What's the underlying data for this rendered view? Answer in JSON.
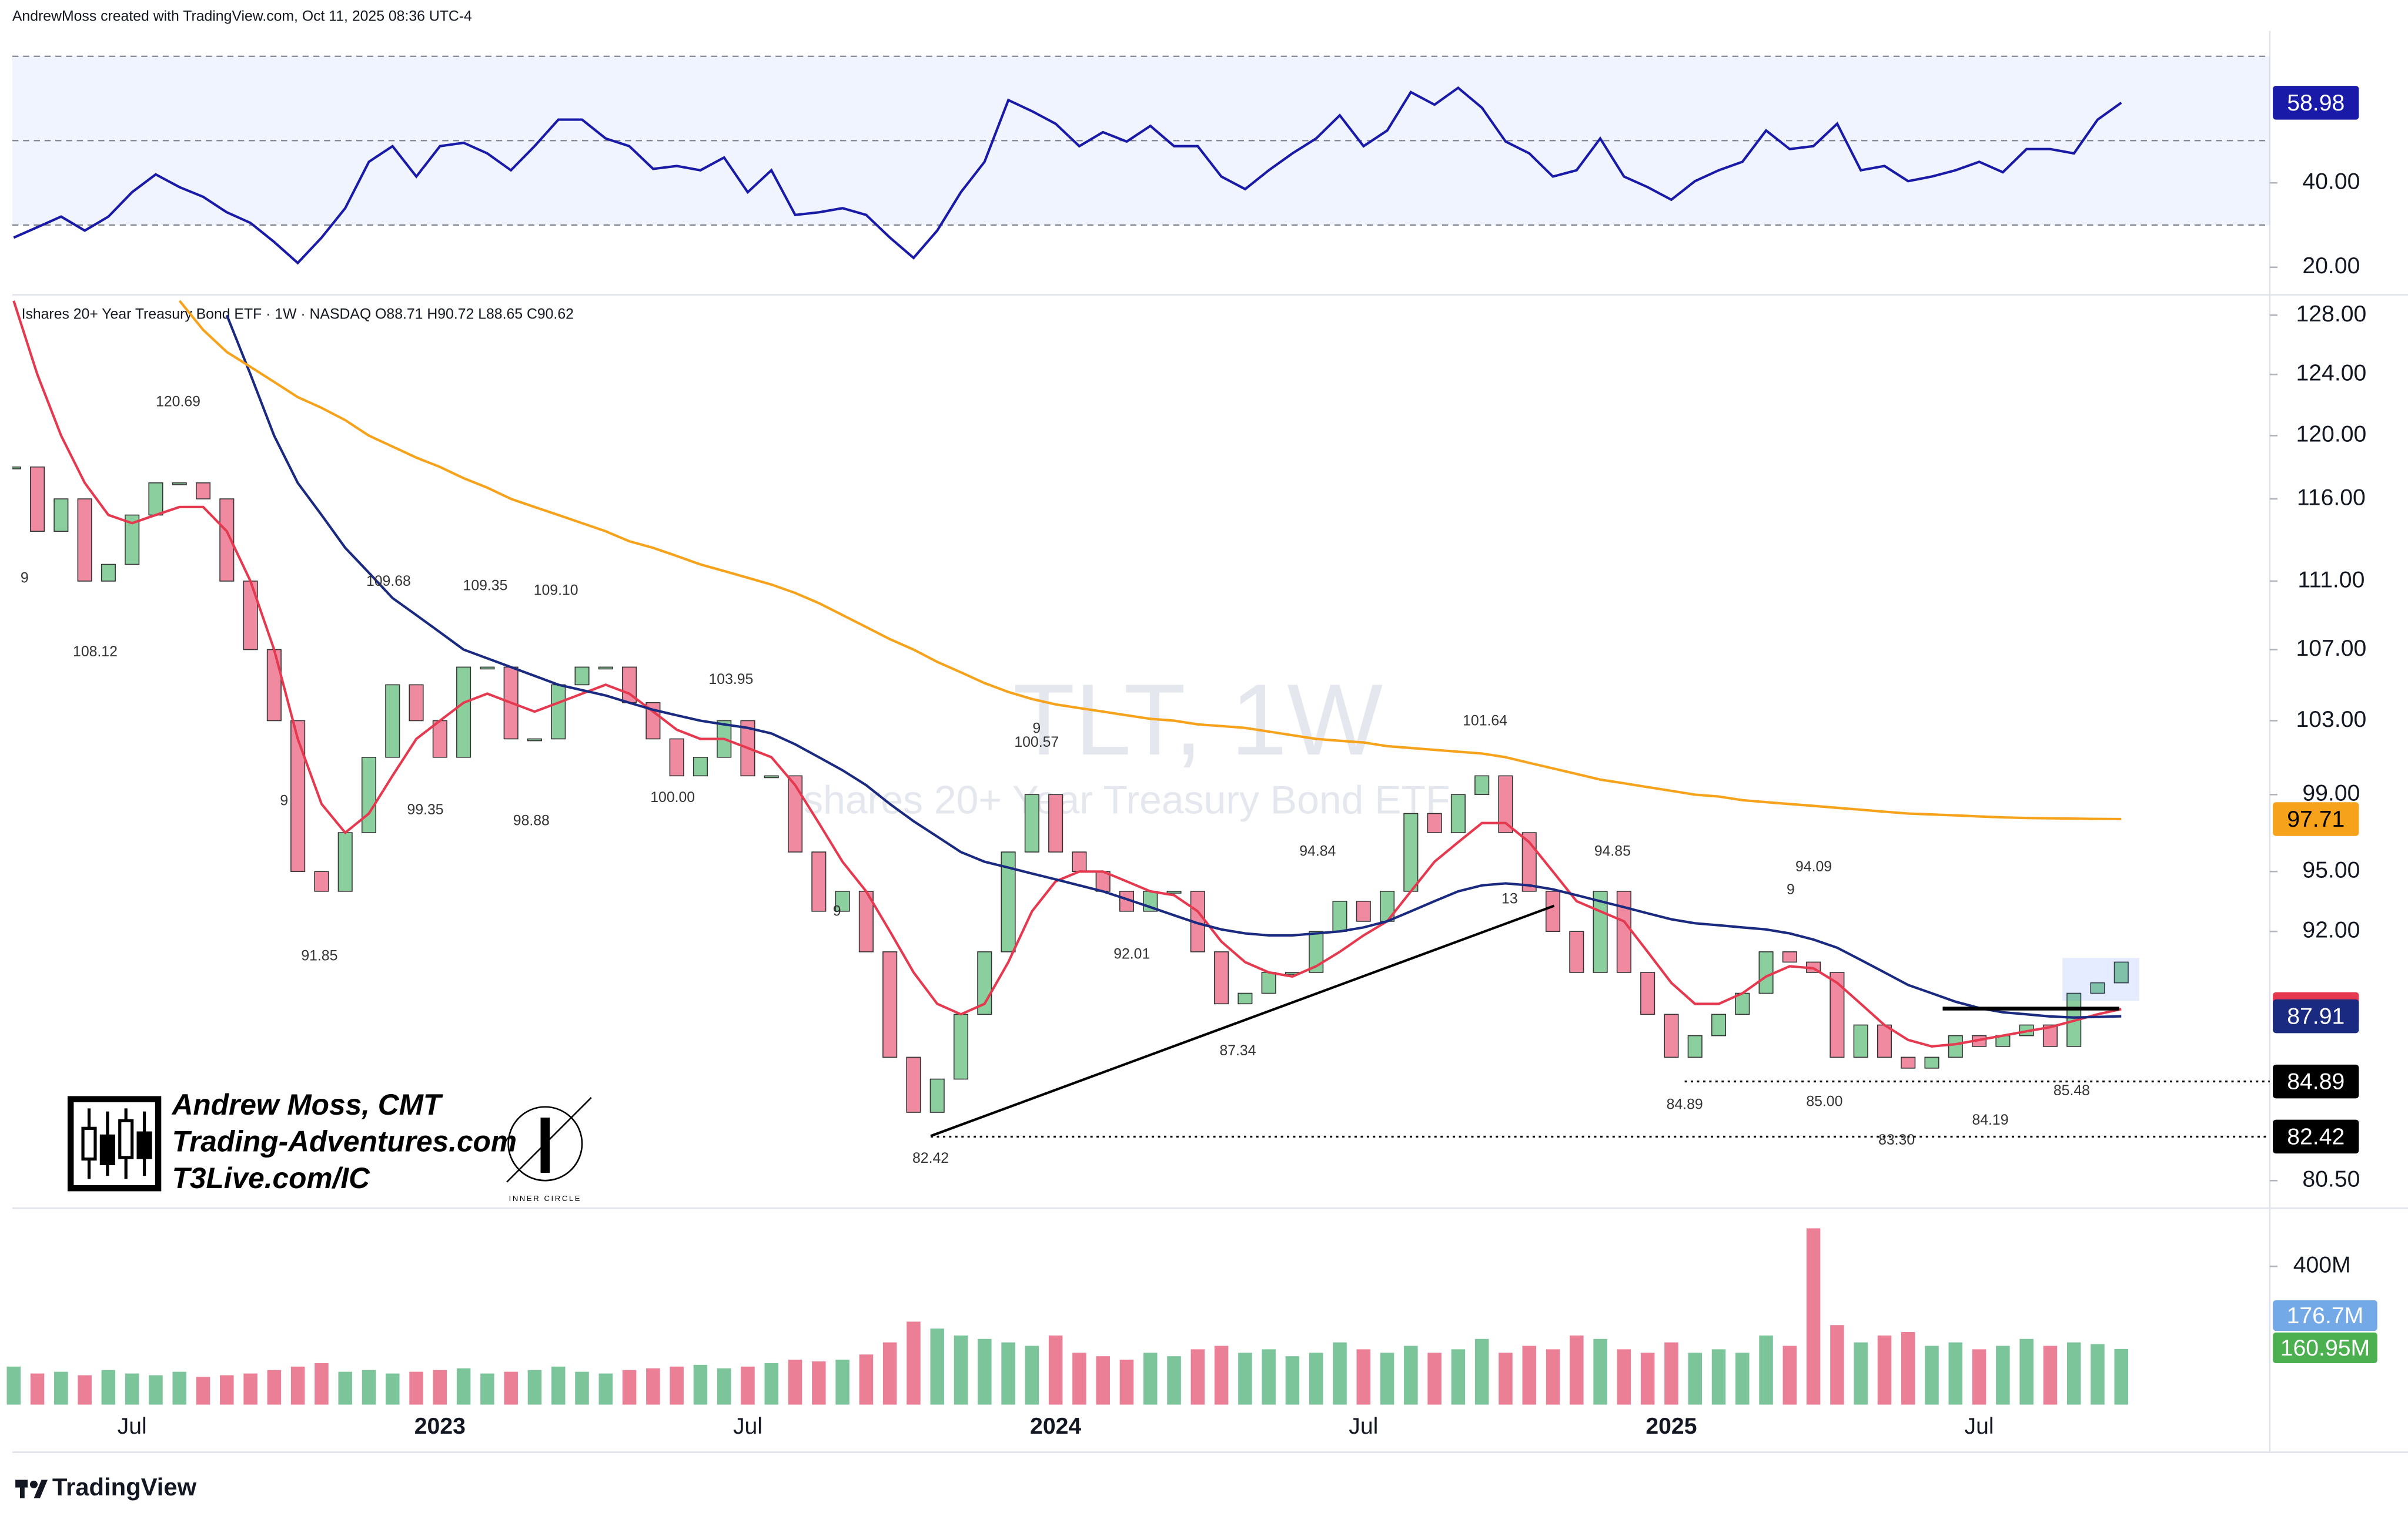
{
  "header": "AndrewMoss created with TradingView.com, Oct 11, 2025 08:36 UTC-4",
  "branding": {
    "name": "Andrew Moss, CMT",
    "site": "Trading-Adventures.com",
    "site2": "T3Live.com/IC",
    "logo": "INNER CIRCLE"
  },
  "footer": "TradingView",
  "chart_data": {
    "type": "candlestick",
    "title": "Ishares 20+ Year Treasury Bond ETF · 1W · NASDAQ  O88.71  H90.72  L88.65  C90.62",
    "watermark": "TLT, 1W",
    "watermark_subtitle": "Ishares 20+ Year Treasury Bond ETF",
    "categories": [
      null,
      null,
      null,
      null,
      null,
      "Jul",
      null,
      null,
      null,
      null,
      null,
      null,
      null,
      null,
      null,
      null,
      null,
      null,
      "2023",
      null,
      null,
      null,
      null,
      null,
      null,
      null,
      null,
      null,
      null,
      null,
      null,
      "Jul",
      null,
      null,
      null,
      null,
      null,
      null,
      null,
      null,
      null,
      null,
      null,
      null,
      "2024",
      null,
      null,
      null,
      null,
      null,
      null,
      null,
      null,
      null,
      null,
      null,
      null,
      "Jul",
      null,
      null,
      null,
      null,
      null,
      null,
      null,
      null,
      null,
      null,
      null,
      null,
      "2025",
      null,
      null,
      null,
      null,
      null,
      null,
      null,
      null,
      null,
      null,
      null,
      null,
      "Jul",
      null,
      null,
      null,
      null,
      null,
      null
    ],
    "log_scale": true,
    "ylim": [
      79.45,
      129.4
    ],
    "yticks": [
      {
        "value": 128,
        "label": "128.00"
      },
      {
        "value": 124,
        "label": "124.00"
      },
      {
        "value": 120,
        "label": "120.00"
      },
      {
        "value": 116,
        "label": "116.00"
      },
      {
        "value": 111,
        "label": "111.00"
      },
      {
        "value": 107,
        "label": "107.00"
      },
      {
        "value": 103,
        "label": "103.00"
      },
      {
        "value": 99,
        "label": "99.00"
      },
      {
        "value": 95,
        "label": "95.00"
      },
      {
        "value": 92,
        "label": "92.00"
      },
      {
        "value": 80.5,
        "label": "80.50"
      }
    ],
    "series": [
      {
        "type": "candlestick",
        "color": "#8ccf9e",
        "down_color": "#ef8aa0",
        "values": [
          118,
          114,
          116,
          111,
          112,
          115,
          117,
          117,
          116,
          111,
          107,
          103,
          95,
          94,
          97,
          101,
          105,
          103,
          101,
          106,
          106,
          102,
          102,
          105,
          106,
          106,
          104,
          102,
          100,
          101,
          103,
          100,
          100,
          96,
          93,
          94,
          91,
          86,
          83.5,
          85,
          88,
          91,
          96,
          99,
          96,
          95,
          94,
          93,
          94,
          94,
          91,
          88.5,
          89,
          90,
          90,
          92,
          93.5,
          92.5,
          94,
          98,
          97,
          99,
          100,
          97,
          94,
          92,
          90,
          94,
          90,
          88,
          86,
          87,
          88,
          89,
          91,
          90.5,
          90,
          86,
          87.5,
          86,
          85.5,
          86,
          87,
          86.5,
          87,
          87.5,
          86.5,
          89,
          89.5,
          90.5
        ]
      },
      {
        "type": "line",
        "color": "#e53950",
        "values": [
          129,
          124,
          120,
          117,
          115,
          114.5,
          115,
          115.5,
          115.5,
          114,
          111,
          107,
          102,
          98.5,
          97,
          98,
          100,
          102,
          103,
          104,
          104.5,
          104,
          103.5,
          104,
          104.5,
          105,
          104.5,
          103.5,
          102.5,
          102,
          102,
          101.5,
          101,
          99.5,
          97.5,
          95.5,
          94,
          92,
          90,
          88.5,
          88,
          88.5,
          90.5,
          93,
          94.5,
          95,
          95,
          94.5,
          94,
          93.8,
          93,
          91.5,
          90.5,
          90,
          89.8,
          90.3,
          91,
          91.8,
          92.5,
          94,
          95.5,
          96.5,
          97.5,
          97.5,
          96.5,
          95,
          93.5,
          93,
          92.5,
          91,
          89.5,
          88.5,
          88.5,
          89,
          89.8,
          90.3,
          90.2,
          89.5,
          88.5,
          87.5,
          86.8,
          86.5,
          86.6,
          86.8,
          87,
          87.2,
          87.4,
          87.7,
          88,
          88.25
        ]
      },
      {
        "type": "line",
        "color": "#1a2a80",
        "values": [
          null,
          null,
          null,
          null,
          null,
          null,
          null,
          null,
          null,
          128,
          124,
          120,
          117,
          115,
          113,
          111.5,
          110,
          109,
          108,
          107,
          106.5,
          106,
          105.5,
          105,
          104.7,
          104.4,
          104,
          103.6,
          103.3,
          103,
          102.8,
          102.6,
          102.3,
          101.7,
          101,
          100.3,
          99.5,
          98.5,
          97.6,
          96.8,
          96,
          95.5,
          95.2,
          94.9,
          94.6,
          94.3,
          94,
          93.6,
          93.2,
          92.8,
          92.4,
          92.1,
          91.9,
          91.8,
          91.8,
          91.9,
          92,
          92.2,
          92.5,
          93,
          93.5,
          94,
          94.3,
          94.4,
          94.3,
          94.1,
          93.8,
          93.5,
          93.2,
          92.9,
          92.6,
          92.4,
          92.3,
          92.2,
          92.1,
          91.9,
          91.6,
          91.2,
          90.6,
          90,
          89.4,
          89,
          88.6,
          88.3,
          88.1,
          88,
          87.9,
          87.85,
          87.88,
          87.91
        ]
      },
      {
        "type": "line",
        "color": "#f7a21b",
        "values": [
          null,
          null,
          null,
          null,
          null,
          null,
          null,
          129,
          127,
          125.5,
          124.5,
          123.5,
          122.5,
          121.8,
          121,
          120,
          119.3,
          118.6,
          118,
          117.3,
          116.7,
          116,
          115.5,
          115,
          114.5,
          114,
          113.4,
          113,
          112.5,
          112,
          111.6,
          111.2,
          110.8,
          110.3,
          109.7,
          109,
          108.3,
          107.6,
          107,
          106.3,
          105.7,
          105.1,
          104.6,
          104.2,
          103.9,
          103.7,
          103.5,
          103.3,
          103.1,
          103,
          102.8,
          102.7,
          102.6,
          102.4,
          102.2,
          102,
          101.9,
          101.8,
          101.6,
          101.5,
          101.4,
          101.3,
          101.2,
          101,
          100.7,
          100.4,
          100.1,
          99.8,
          99.6,
          99.4,
          99.2,
          99,
          98.9,
          98.7,
          98.6,
          98.5,
          98.4,
          98.3,
          98.2,
          98.1,
          98,
          97.95,
          97.9,
          97.85,
          97.8,
          97.77,
          97.75,
          97.73,
          97.72,
          97.71
        ]
      }
    ],
    "price_badges": [
      {
        "value": 97.71,
        "color": "#f7a21b",
        "text_color": "#000"
      },
      {
        "value": 88.25,
        "color": "#e53950",
        "text_color": "#fff"
      },
      {
        "value": 87.91,
        "color": "#1a2a80",
        "text_color": "#fff"
      },
      {
        "value": 84.89,
        "color": "#000",
        "text_color": "#fff"
      },
      {
        "value": 82.42,
        "color": "#000",
        "text_color": "#fff"
      }
    ],
    "annotations": [
      "120.69",
      "108.12",
      "109.68",
      "99.35",
      "109.35",
      "98.88",
      "109.10",
      "100.00",
      "103.95",
      "91.85",
      "82.42",
      "100.57",
      "92.01",
      "87.34",
      "94.84",
      "101.64",
      "94.85",
      "84.89",
      "85.00",
      "94.09",
      "83.30",
      "84.19",
      "85.48"
    ],
    "markers": [
      "9",
      "9",
      "9",
      "9",
      "9",
      "13"
    ],
    "rsi": {
      "type": "line",
      "color": "#1a1aa8",
      "ylim": [
        13.45,
        73.1
      ],
      "yticks": [
        {
          "value": 40,
          "label": "40.00"
        },
        {
          "value": 20,
          "label": "20.00"
        }
      ],
      "levels": [
        30,
        50,
        70
      ],
      "values": [
        27,
        29.5,
        32,
        28.7,
        32,
        37.8,
        42,
        39,
        36.7,
        33,
        30.5,
        26,
        21,
        27,
        34,
        45,
        48.7,
        41.5,
        48.7,
        49.5,
        47,
        43,
        48.7,
        55,
        55,
        50.5,
        48.7,
        43.3,
        44,
        43,
        46,
        37.8,
        43,
        32.4,
        33,
        34,
        32.4,
        27,
        22.2,
        28.7,
        37.8,
        45,
        59.6,
        57,
        54,
        48.7,
        52,
        49.8,
        53.5,
        48.7,
        48.7,
        41.5,
        38.5,
        43,
        47,
        50.5,
        56,
        48.7,
        52.4,
        61.5,
        58.5,
        62.5,
        57.8,
        49.8,
        47,
        41.5,
        43,
        50.5,
        41.5,
        39,
        36,
        40.4,
        43,
        45,
        52.4,
        48,
        48.7,
        54,
        43,
        44,
        40.4,
        41.5,
        43,
        45,
        42.5,
        48,
        48,
        47,
        55,
        58.98
      ],
      "badge": {
        "value": 58.98,
        "color": "#1a1aa8"
      }
    },
    "volume": {
      "type": "bar",
      "color": "#7cc49a",
      "down_color": "#ea7f96",
      "ylim": [
        0,
        555
      ],
      "yticks": [
        {
          "value": 400,
          "label": "400M"
        }
      ],
      "values": [
        110,
        90,
        95,
        85,
        100,
        90,
        85,
        95,
        80,
        85,
        90,
        100,
        110,
        120,
        95,
        100,
        90,
        95,
        100,
        105,
        90,
        95,
        100,
        110,
        95,
        90,
        100,
        105,
        110,
        115,
        105,
        110,
        120,
        130,
        125,
        130,
        145,
        180,
        240,
        220,
        200,
        190,
        180,
        170,
        200,
        150,
        140,
        130,
        150,
        140,
        160,
        170,
        150,
        160,
        140,
        150,
        180,
        160,
        150,
        170,
        150,
        160,
        190,
        150,
        170,
        160,
        200,
        190,
        160,
        150,
        180,
        150,
        160,
        150,
        200,
        170,
        510,
        230,
        180,
        200,
        210,
        170,
        180,
        160,
        170,
        190,
        170,
        180,
        175,
        160.95
      ],
      "badges": [
        {
          "value": 176.7,
          "label": "176.7M",
          "color": "#74a9e8"
        },
        {
          "value": 160.95,
          "label": "160.95M",
          "color": "#4caf50"
        }
      ]
    }
  }
}
